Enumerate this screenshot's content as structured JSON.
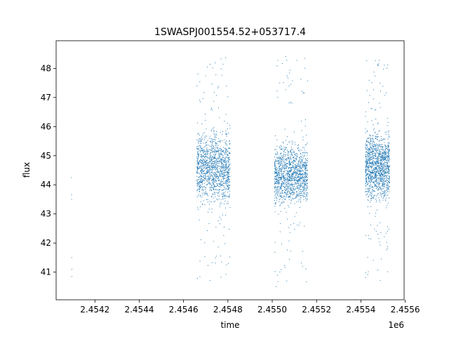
{
  "chart_data": {
    "type": "scatter",
    "title": "1SWASPJ001554.52+053717.4",
    "xlabel": "time",
    "ylabel": "flux",
    "x_offset_label": "1e6",
    "xlim": [
      2454025,
      2455595
    ],
    "ylim": [
      40.05,
      48.95
    ],
    "x_ticks": [
      2454200,
      2454400,
      2454600,
      2454800,
      2455000,
      2455200,
      2455400,
      2455600
    ],
    "x_tick_labels": [
      "2.4542",
      "2.4544",
      "2.4546",
      "2.4548",
      "2.4550",
      "2.4552",
      "2.4554",
      "2.4556"
    ],
    "y_ticks": [
      41,
      42,
      43,
      44,
      45,
      46,
      47,
      48
    ],
    "y_tick_labels": [
      "41",
      "42",
      "43",
      "44",
      "45",
      "46",
      "47",
      "48"
    ],
    "grid": false,
    "legend": "none",
    "point_color": "#1f77b4",
    "series": [
      {
        "x": [
          2454094.0,
          2454094.5,
          2454095.0,
          2454095.3,
          2454095.8,
          2454096.1
        ],
        "y": [
          44.25,
          43.65,
          43.5,
          41.5,
          41.1,
          40.85
        ]
      }
    ],
    "observing_seasons": [
      {
        "x_start": 2454660,
        "x_end": 2454810,
        "flux_low": 43.1,
        "flux_high": 46.05,
        "outlier_low": 40.6,
        "outlier_high": 48.4
      },
      {
        "x_start": 2455010,
        "x_end": 2455160,
        "flux_low": 43.1,
        "flux_high": 45.6,
        "outlier_low": 40.5,
        "outlier_high": 48.5
      },
      {
        "x_start": 2455420,
        "x_end": 2455530,
        "flux_low": 43.2,
        "flux_high": 46.1,
        "outlier_low": 40.5,
        "outlier_high": 48.3
      }
    ]
  }
}
